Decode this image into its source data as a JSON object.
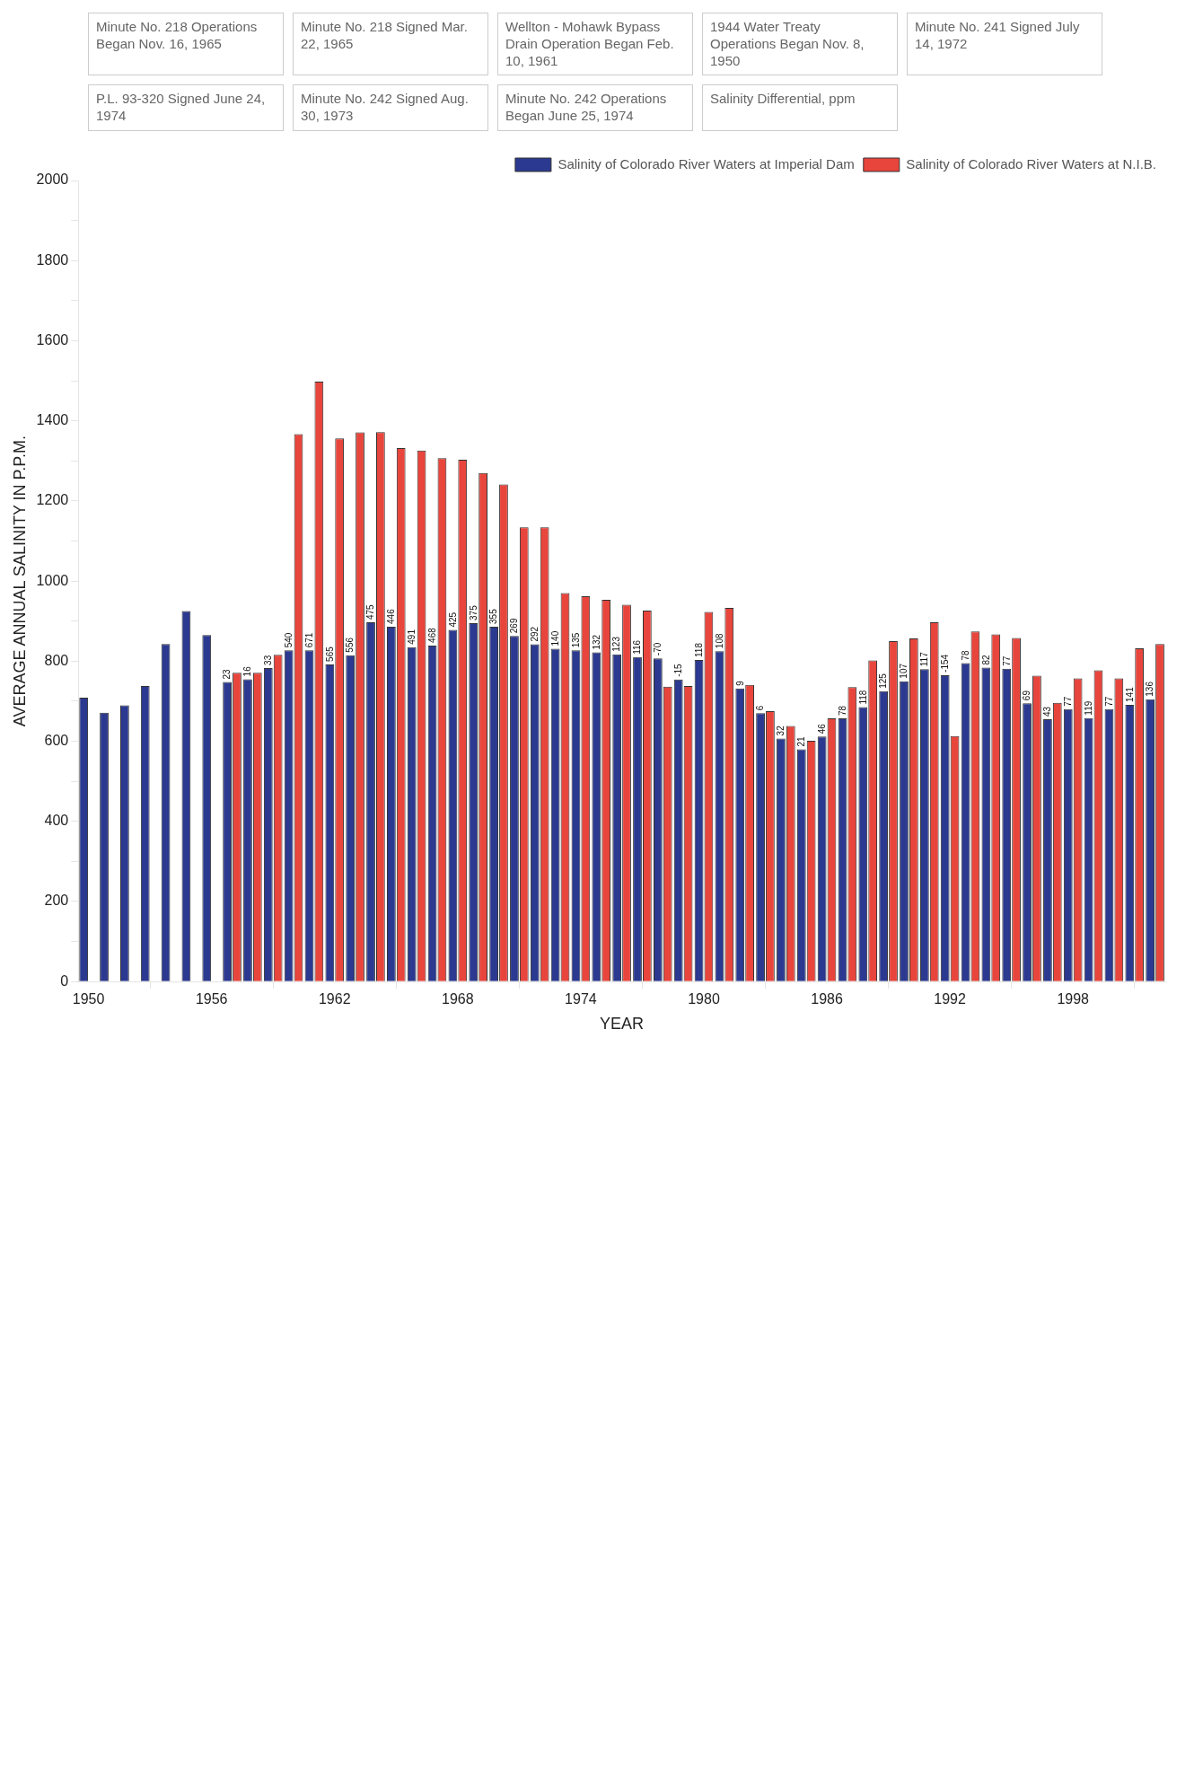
{
  "chart_data": {
    "type": "bar",
    "xlabel": "YEAR",
    "ylabel": "AVERAGE ANNUAL SALINITY IN P.P.M.",
    "x": [
      1950,
      1951,
      1952,
      1953,
      1954,
      1955,
      1956,
      1957,
      1958,
      1959,
      1960,
      1961,
      1962,
      1963,
      1964,
      1965,
      1966,
      1967,
      1968,
      1969,
      1970,
      1971,
      1972,
      1973,
      1974,
      1975,
      1976,
      1977,
      1978,
      1979,
      1980,
      1981,
      1982,
      1983,
      1984,
      1985,
      1986,
      1987,
      1988,
      1989,
      1990,
      1991,
      1992,
      1993,
      1994,
      1995,
      1996,
      1997,
      1998,
      1999,
      2000,
      2001,
      2002
    ],
    "xlim": [
      1949.5,
      2002.5
    ],
    "xticks": [
      1950,
      1956,
      1962,
      1968,
      1974,
      1980,
      1986,
      1992,
      1998
    ],
    "series": [
      {
        "name": "Salinity of Colorado River Waters at Imperial Dam",
        "color": "#2b3990",
        "values": [
          709,
          671,
          690,
          738,
          843,
          925,
          865,
          748,
          755,
          783,
          827,
          827,
          792,
          815,
          897,
          886,
          835,
          839,
          878,
          895,
          886,
          863,
          842,
          831,
          827,
          822,
          817,
          810,
          807,
          754,
          803,
          825,
          732,
          670,
          607,
          580,
          612,
          657,
          685,
          725,
          750,
          780,
          765,
          795,
          784,
          781,
          695,
          655,
          680,
          658,
          680,
          691,
          705
        ]
      },
      {
        "name": "Salinity of Colorado River Waters at N.I.B.",
        "color": "#e8453c",
        "values": [
          null,
          null,
          null,
          null,
          null,
          null,
          null,
          771,
          771,
          816,
          1367,
          1498,
          1356,
          1371,
          1372,
          1332,
          1326,
          1307,
          1303,
          1270,
          1241,
          1134,
          1134,
          970,
          962,
          953,
          941,
          926,
          736,
          738,
          923,
          933,
          741,
          675,
          638,
          601,
          657,
          735,
          802,
          850,
          857,
          897,
          613,
          874,
          867,
          858,
          764,
          696,
          757,
          777,
          757,
          832,
          843
        ]
      }
    ],
    "ylim": [
      0,
      2000
    ],
    "yticks": [
      0,
      {
        "value": 100,
        "label": null
      },
      200,
      {
        "value": 300,
        "label": null
      },
      400,
      {
        "value": 500,
        "label": null
      },
      600,
      {
        "value": 700,
        "label": null
      },
      800,
      {
        "value": 900,
        "label": null
      },
      1000,
      {
        "value": 1100,
        "label": null
      },
      1200,
      {
        "value": 1300,
        "label": null
      },
      1400,
      {
        "value": 1500,
        "label": null
      },
      1600,
      {
        "value": 1700,
        "label": null
      },
      1800,
      {
        "value": 1900,
        "label": null
      },
      2000
    ],
    "legend": "top right",
    "annotations": [
      "Minute No. 218 Operations Began Nov. 16, 1965",
      "Minute No. 218 Signed Mar. 22, 1965",
      "Wellton - Mohawk Bypass Drain Operation Began Feb. 10, 1961",
      "1944 Water Treaty Operations Began Nov. 8, 1950",
      "Minute No. 241 Signed July 14, 1972",
      "P.L. 93-320 Signed June 24, 1974",
      "Minute No. 242 Signed Aug. 30, 1973",
      "Minute No. 242 Operations Began June 25, 1974",
      "Salinity Differential, ppm",
      {
        "text": "23",
        "x": 1957,
        "y": 748
      },
      {
        "text": "16",
        "x": 1958,
        "y": 755
      },
      {
        "text": "33",
        "x": 1959,
        "y": 783
      },
      {
        "text": "540",
        "x": 1960,
        "y": 827
      },
      {
        "text": "671",
        "x": 1961,
        "y": 827
      },
      {
        "text": "565",
        "x": 1962,
        "y": 792
      },
      {
        "text": "556",
        "x": 1963,
        "y": 815
      },
      {
        "text": "475",
        "x": 1964,
        "y": 897
      },
      {
        "text": "446",
        "x": 1965,
        "y": 886
      },
      {
        "text": "491",
        "x": 1966,
        "y": 835
      },
      {
        "text": "468",
        "x": 1967,
        "y": 839
      },
      {
        "text": "425",
        "x": 1968,
        "y": 878
      },
      {
        "text": "375",
        "x": 1969,
        "y": 895
      },
      {
        "text": "355",
        "x": 1970,
        "y": 886
      },
      {
        "text": "269",
        "x": 1971,
        "y": 863
      },
      {
        "text": "292",
        "x": 1972,
        "y": 842
      },
      {
        "text": "140",
        "x": 1973,
        "y": 831
      },
      {
        "text": "135",
        "x": 1974,
        "y": 827
      },
      {
        "text": "132",
        "x": 1975,
        "y": 822
      },
      {
        "text": "123",
        "x": 1976,
        "y": 817
      },
      {
        "text": "116",
        "x": 1977,
        "y": 810
      },
      {
        "text": "-70",
        "x": 1978,
        "y": 807
      },
      {
        "text": "-15",
        "x": 1979,
        "y": 754
      },
      {
        "text": "118",
        "x": 1980,
        "y": 803
      },
      {
        "text": "108",
        "x": 1981,
        "y": 825
      },
      {
        "text": "9",
        "x": 1982,
        "y": 732
      },
      {
        "text": "6",
        "x": 1983,
        "y": 670
      },
      {
        "text": "32",
        "x": 1984,
        "y": 607
      },
      {
        "text": "21",
        "x": 1985,
        "y": 580
      },
      {
        "text": "46",
        "x": 1986,
        "y": 612
      },
      {
        "text": "78",
        "x": 1987,
        "y": 657
      },
      {
        "text": "118",
        "x": 1988,
        "y": 685
      },
      {
        "text": "125",
        "x": 1989,
        "y": 725
      },
      {
        "text": "107",
        "x": 1990,
        "y": 750
      },
      {
        "text": "117",
        "x": 1991,
        "y": 780
      },
      {
        "text": "-154",
        "x": 1992,
        "y": 765
      },
      {
        "text": "78",
        "x": 1993,
        "y": 795
      },
      {
        "text": "82",
        "x": 1994,
        "y": 784
      },
      {
        "text": "77",
        "x": 1995,
        "y": 781
      },
      {
        "text": "69",
        "x": 1996,
        "y": 695
      },
      {
        "text": "43",
        "x": 1997,
        "y": 655
      },
      {
        "text": "77",
        "x": 1998,
        "y": 680
      },
      {
        "text": "119",
        "x": 1999,
        "y": 658
      },
      {
        "text": "77",
        "x": 2000,
        "y": 680
      },
      {
        "text": "141",
        "x": 2001,
        "y": 691
      },
      {
        "text": "136",
        "x": 2002,
        "y": 705
      }
    ]
  }
}
